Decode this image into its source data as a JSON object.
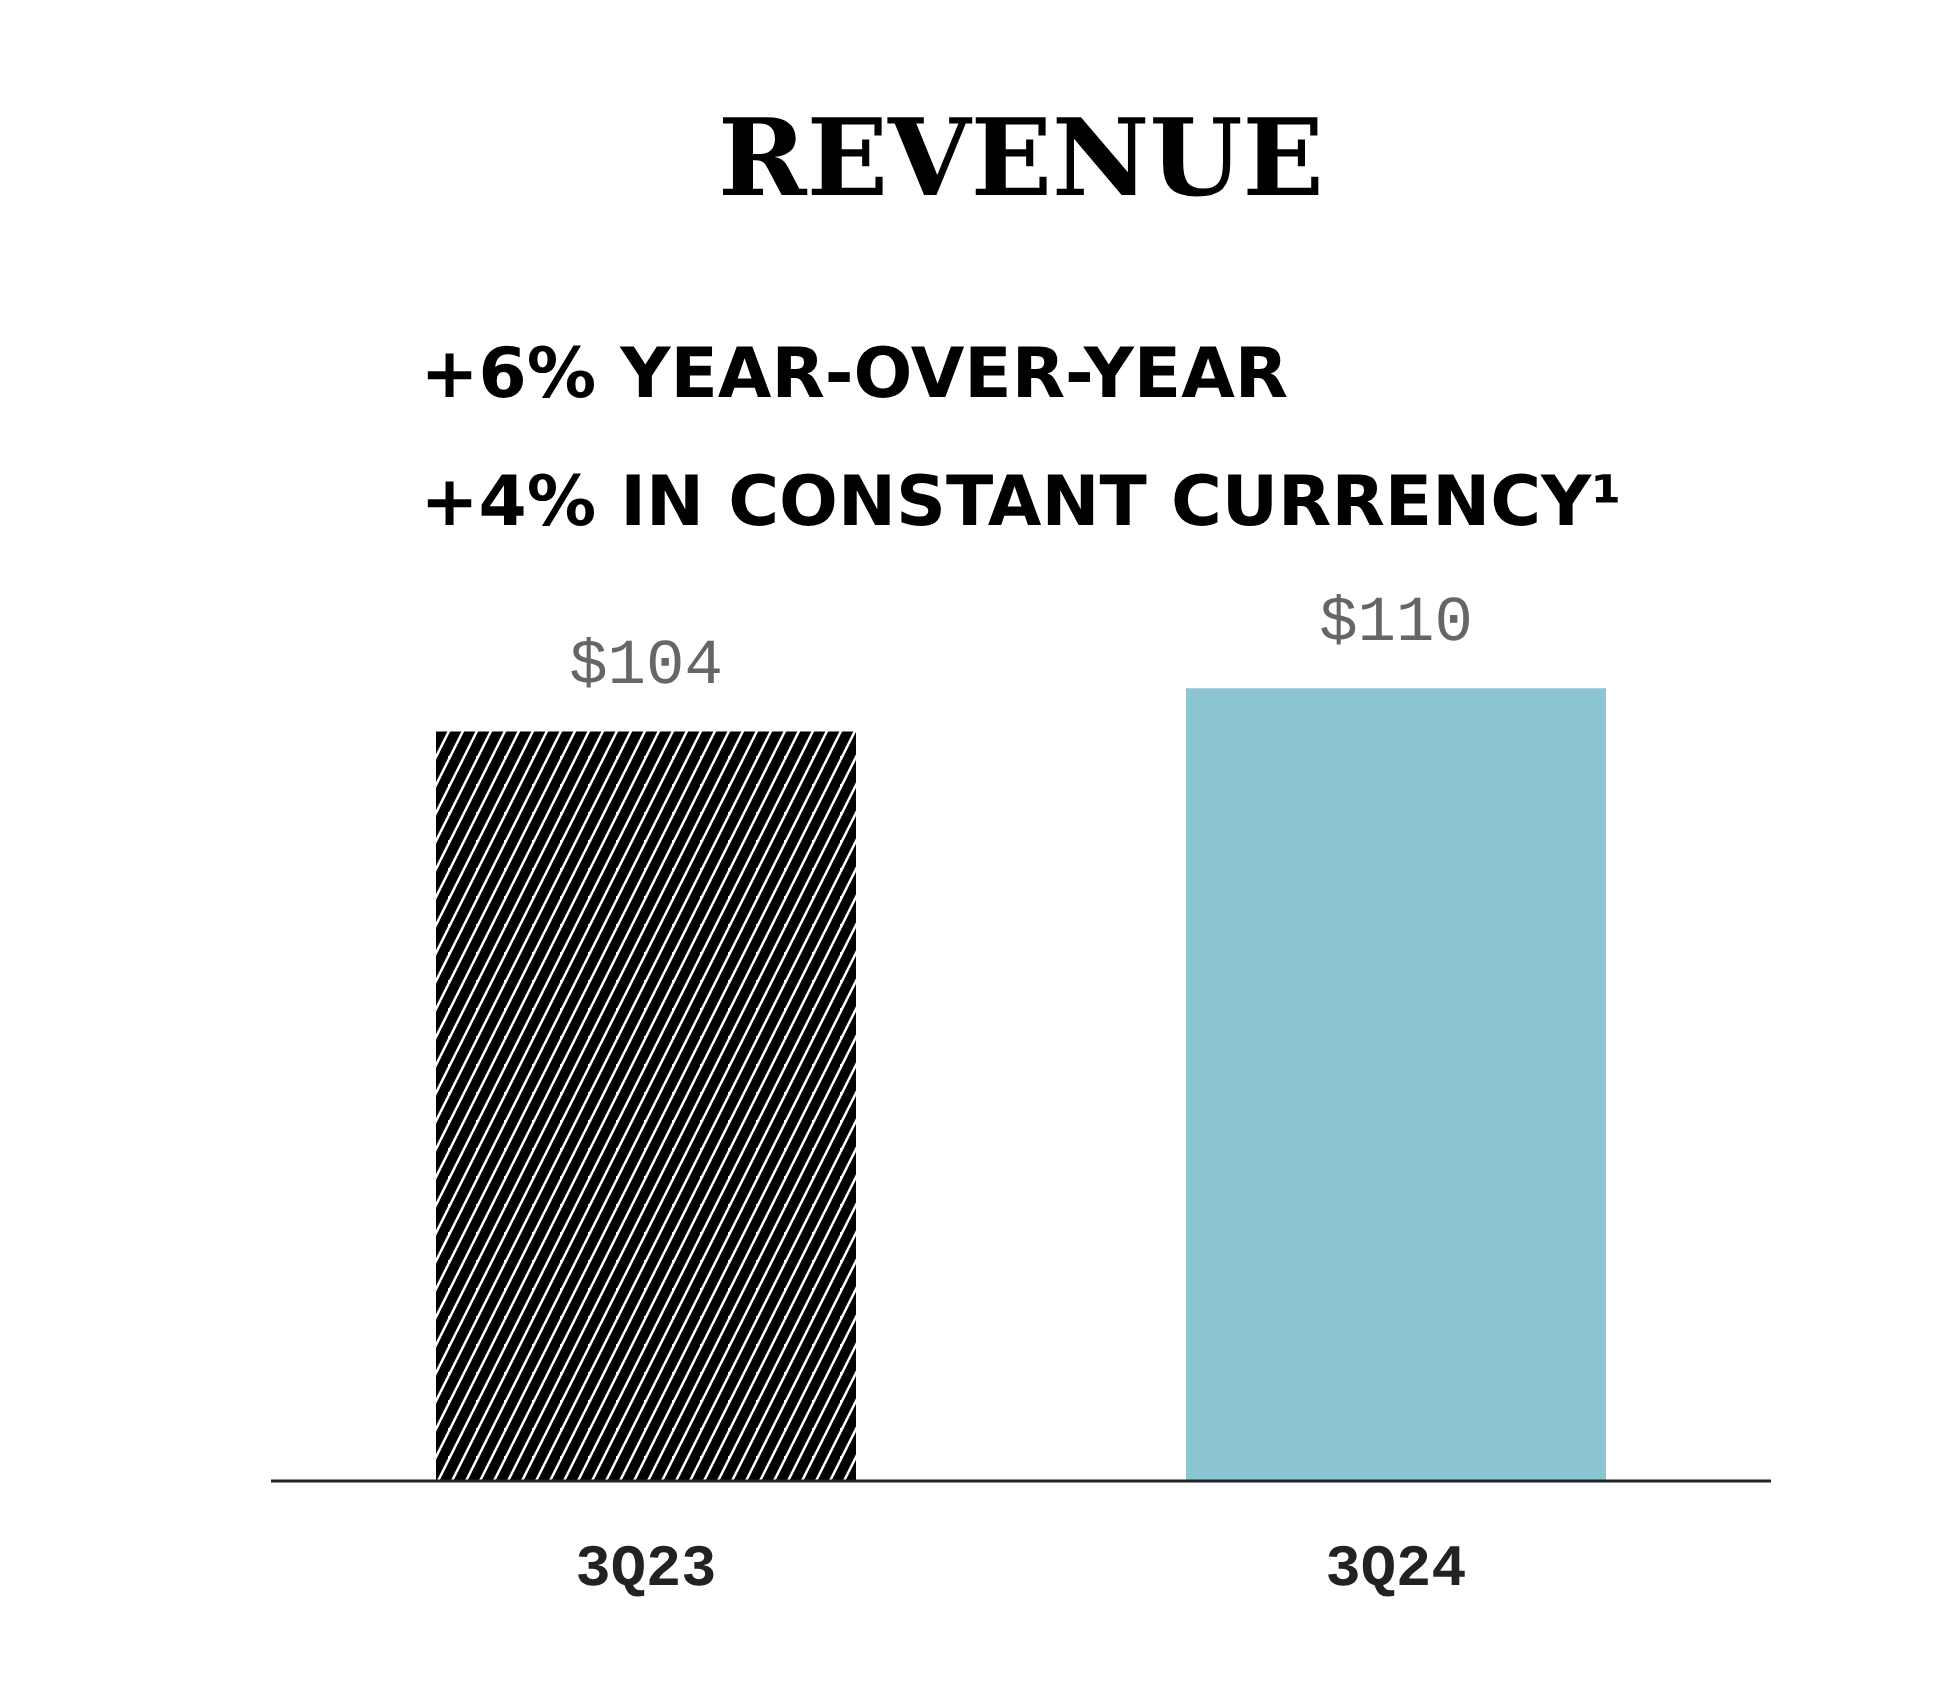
{
  "chart_data": {
    "type": "bar",
    "title": "REVENUE",
    "subtitle": "+6% YEAR-OVER-YEAR\n+4% IN CONSTANT CURRENCY¹",
    "categories": [
      "3Q23",
      "3Q24"
    ],
    "values": [
      104,
      110
    ],
    "colors": [
      "#000000",
      "#8dc6d3"
    ],
    "value_labels": [
      "$104",
      "$110"
    ],
    "grid": false,
    "tick_labels": "x"
  }
}
